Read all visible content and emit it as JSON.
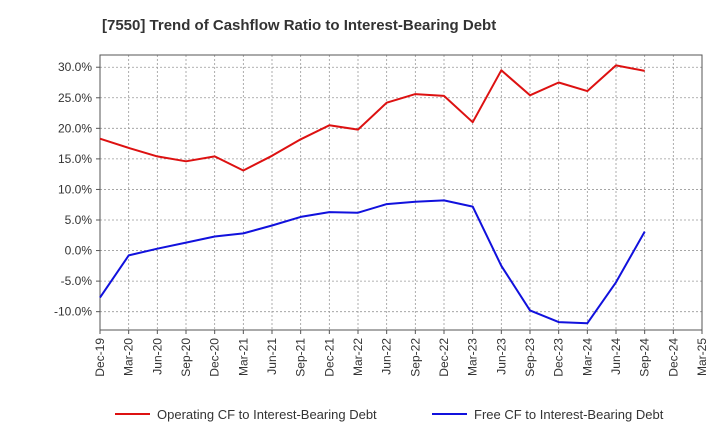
{
  "chart_data": {
    "type": "line",
    "title": "[7550]  Trend of Cashflow Ratio to Interest-Bearing Debt",
    "xlabel": "",
    "ylabel": "",
    "x": [
      "Dec-19",
      "Mar-20",
      "Jun-20",
      "Sep-20",
      "Dec-20",
      "Mar-21",
      "Jun-21",
      "Sep-21",
      "Dec-21",
      "Mar-22",
      "Jun-22",
      "Sep-22",
      "Dec-22",
      "Mar-23",
      "Jun-23",
      "Sep-23",
      "Dec-23",
      "Mar-24",
      "Jun-24",
      "Sep-24",
      "Dec-24",
      "Mar-25"
    ],
    "ylim": [
      -13,
      32
    ],
    "yticks": [
      30,
      25,
      20,
      15,
      10,
      5,
      0,
      -5,
      -10
    ],
    "ytick_labels": [
      "30.0%",
      "25.0%",
      "20.0%",
      "15.0%",
      "10.0%",
      "5.0%",
      "0.0%",
      "-5.0%",
      "-10.0%"
    ],
    "grid": true,
    "legend_position": "bottom",
    "series": [
      {
        "name": "Operating CF to Interest-Bearing Debt",
        "color": "#dd1111",
        "values": [
          18.3,
          16.8,
          15.4,
          14.6,
          15.4,
          13.1,
          15.5,
          18.2,
          20.5,
          19.8,
          24.2,
          25.6,
          25.3,
          21.0,
          29.5,
          25.4,
          27.5,
          26.1,
          30.3,
          29.4,
          null,
          null
        ]
      },
      {
        "name": "Free CF to Interest-Bearing Debt",
        "color": "#1111dd",
        "values": [
          -7.7,
          -0.8,
          0.3,
          1.3,
          2.3,
          2.8,
          4.1,
          5.5,
          6.3,
          6.2,
          7.6,
          8.0,
          8.2,
          7.2,
          -2.5,
          -9.8,
          -11.7,
          -11.9,
          -5.2,
          3.1,
          null,
          null
        ]
      }
    ]
  }
}
